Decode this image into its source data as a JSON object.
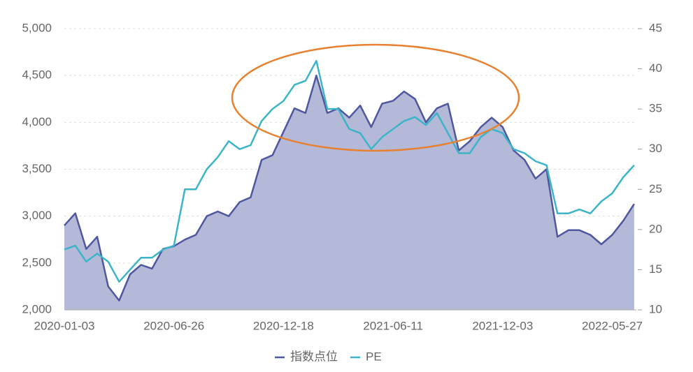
{
  "chart_data": {
    "type": "line",
    "categories": [
      "2020-01-03",
      null,
      null,
      null,
      null,
      null,
      null,
      null,
      null,
      null,
      "2020-06-26",
      null,
      null,
      null,
      null,
      null,
      null,
      null,
      null,
      null,
      "2020-12-18",
      null,
      null,
      null,
      null,
      null,
      null,
      null,
      null,
      null,
      "2021-06-11",
      null,
      null,
      null,
      null,
      null,
      null,
      null,
      null,
      null,
      "2021-12-03",
      null,
      null,
      null,
      null,
      null,
      null,
      null,
      null,
      null,
      "2022-05-27",
      null,
      null
    ],
    "series": [
      {
        "name": "指数点位",
        "color": "#4e57a0",
        "area_color": "#b4b9d8",
        "area": true,
        "values": [
          2900,
          3030,
          2650,
          2780,
          2250,
          2100,
          2380,
          2480,
          2440,
          2650,
          2680,
          2750,
          2800,
          3000,
          3050,
          3000,
          3150,
          3200,
          3600,
          3650,
          3900,
          4150,
          4100,
          4500,
          4100,
          4150,
          4050,
          4180,
          3950,
          4200,
          4230,
          4330,
          4250,
          4000,
          4150,
          4200,
          3700,
          3800,
          3950,
          4050,
          3950,
          3700,
          3600,
          3400,
          3500,
          2780,
          2850,
          2850,
          2800,
          2700,
          2800,
          2950,
          3130
        ]
      },
      {
        "name": "PE",
        "color": "#3cb4c8",
        "axis": "y2",
        "values": [
          17.5,
          18,
          16,
          17,
          16,
          13.5,
          15,
          16.5,
          16.5,
          17.5,
          18,
          25,
          25,
          27.5,
          29,
          31,
          30,
          30.5,
          33.5,
          35,
          36,
          38,
          38.5,
          41,
          35,
          35,
          32.5,
          32,
          30,
          31.5,
          32.5,
          33.5,
          34,
          33,
          34.5,
          32,
          29.5,
          29.5,
          31.5,
          32.5,
          32,
          30,
          29.5,
          28.5,
          28,
          22,
          22,
          22.5,
          22,
          23.5,
          24.5,
          26.5,
          28
        ]
      }
    ],
    "ylim": [
      2000,
      5000
    ],
    "yticks": [
      {
        "value": 2000,
        "label": "2,000"
      },
      {
        "value": 2500,
        "label": "2,500"
      },
      {
        "value": 3000,
        "label": "3,000"
      },
      {
        "value": 3500,
        "label": "3,500"
      },
      {
        "value": 4000,
        "label": "4,000"
      },
      {
        "value": 4500,
        "label": "4,500"
      },
      {
        "value": 5000,
        "label": "5,000"
      }
    ],
    "y2lim": [
      10,
      45
    ],
    "y2ticks": [
      10,
      15,
      20,
      25,
      30,
      35,
      40,
      45
    ],
    "grid": true
  }
}
